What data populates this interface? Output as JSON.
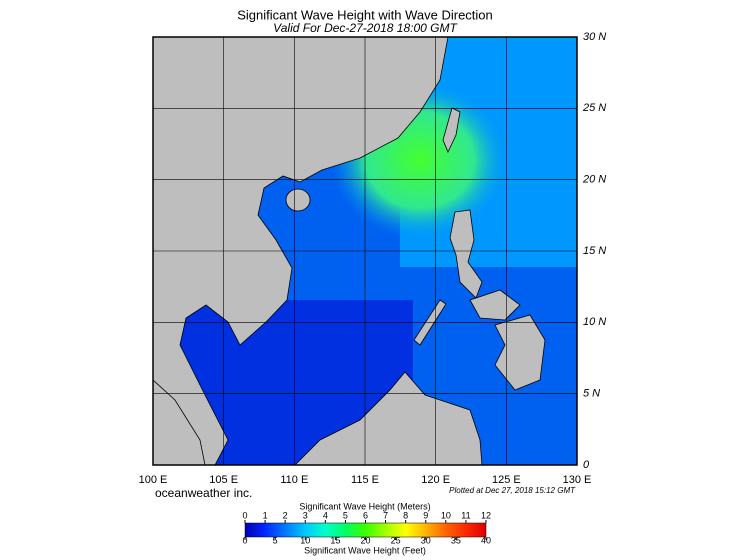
{
  "header": {
    "title": "Significant Wave Height with Wave Direction",
    "subtitle": "Valid For Dec-27-2018 18:00 GMT"
  },
  "map": {
    "lon_labels": [
      "100 E",
      "105 E",
      "110 E",
      "115 E",
      "120 E",
      "125 E",
      "130 E"
    ],
    "lat_labels": [
      "0",
      "5 N",
      "10 N",
      "15 N",
      "20 N",
      "25 N",
      "30 N"
    ],
    "credit": "oceanweather inc.",
    "plotted": "Plotted at Dec 27, 2018 15:12 GMT"
  },
  "colorbar": {
    "meters_label": "Significant Wave Height (Meters)",
    "meters_ticks": [
      0,
      1,
      2,
      3,
      4,
      5,
      6,
      7,
      8,
      9,
      10,
      11,
      12
    ],
    "meters_lim": [
      0,
      12
    ],
    "feet_ticks": [
      0,
      5,
      10,
      15,
      20,
      25,
      30,
      35,
      40
    ],
    "feet_lim": [
      0,
      40
    ],
    "feet_label": "Significant Wave Height (Feet)",
    "colors": [
      "#0000b4",
      "#0028ff",
      "#0078ff",
      "#00c8ff",
      "#00ffc8",
      "#00ff64",
      "#3cff00",
      "#a0ff00",
      "#ffff00",
      "#ffb400",
      "#ff6400",
      "#ff2800",
      "#dc0000"
    ]
  }
}
